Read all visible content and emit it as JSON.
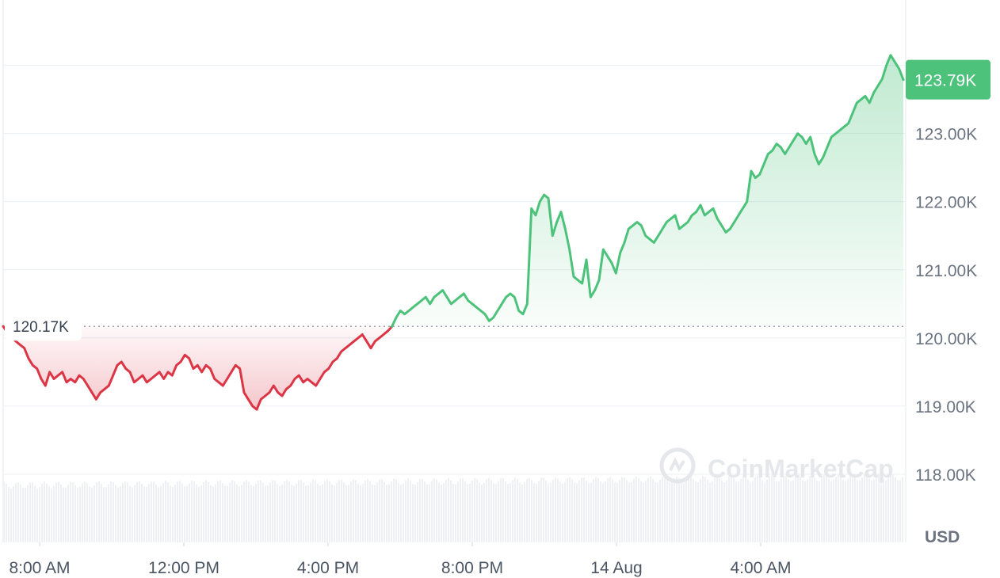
{
  "chart_data": {
    "type": "area",
    "y_ticks": [
      "123.00K",
      "122.00K",
      "121.00K",
      "120.00K",
      "119.00K",
      "118.00K"
    ],
    "y_tick_values": [
      123000,
      122000,
      121000,
      120000,
      119000,
      118000
    ],
    "x_ticks": [
      "8:00 AM",
      "12:00 PM",
      "4:00 PM",
      "8:00 PM",
      "14 Aug",
      "4:00 AM"
    ],
    "ylim": [
      117000,
      124960
    ],
    "currency": "USD",
    "reference_label": "120.17K",
    "reference_value": 120170,
    "current_label": "123.79K",
    "current_value": 123790,
    "watermark": "CoinMarketCap",
    "up_color": "#4cc27a",
    "down_color": "#dc3545",
    "series": [
      {
        "values": [
          120170,
          120080,
          120020,
          119950,
          119900,
          119850,
          119700,
          119600,
          119550,
          119400,
          119300,
          119500,
          119400,
          119450,
          119500,
          119350,
          119400,
          119350,
          119450,
          119400,
          119300,
          119200,
          119100,
          119200,
          119250,
          119300,
          119450,
          119600,
          119650,
          119550,
          119500,
          119350,
          119400,
          119450,
          119350,
          119400,
          119450,
          119500,
          119400,
          119500,
          119450,
          119600,
          119650,
          119750,
          119700,
          119550,
          119600,
          119500,
          119600,
          119550,
          119400,
          119350,
          119300,
          119400,
          119500,
          119600,
          119550,
          119200,
          119100,
          119000,
          118950,
          119100,
          119150,
          119200,
          119300,
          119200,
          119150,
          119250,
          119300,
          119400,
          119450,
          119350,
          119400,
          119350,
          119300,
          119400,
          119500,
          119550,
          119650,
          119700,
          119800,
          119850,
          119900,
          119950,
          120000,
          120050,
          119950,
          119850,
          119950,
          120000,
          120050,
          120100,
          120170,
          120300,
          120400,
          120350,
          120400,
          120450,
          120500,
          120550,
          120600,
          120500,
          120600,
          120650,
          120700,
          120600,
          120500,
          120550,
          120600,
          120650,
          120550,
          120500,
          120450,
          120400,
          120350,
          120250,
          120300,
          120400,
          120500,
          120600,
          120650,
          120600,
          120400,
          120350,
          120500,
          121900,
          121800,
          122000,
          122100,
          122050,
          121500,
          121700,
          121850,
          121600,
          121300,
          120900,
          120850,
          120800,
          121150,
          120600,
          120700,
          120850,
          121300,
          121200,
          121100,
          120950,
          121250,
          121400,
          121600,
          121650,
          121700,
          121650,
          121500,
          121450,
          121400,
          121500,
          121600,
          121700,
          121750,
          121800,
          121600,
          121650,
          121700,
          121800,
          121850,
          121950,
          121800,
          121850,
          121900,
          121750,
          121650,
          121550,
          121600,
          121700,
          121800,
          121900,
          122000,
          122450,
          122350,
          122400,
          122550,
          122700,
          122750,
          122850,
          122800,
          122700,
          122800,
          122900,
          123000,
          122950,
          122850,
          122950,
          122700,
          122550,
          122650,
          122800,
          122950,
          123000,
          123050,
          123100,
          123150,
          123300,
          123450,
          123500,
          123550,
          123450,
          123600,
          123700,
          123800,
          124000,
          124150,
          124050,
          123950,
          123790
        ]
      }
    ]
  }
}
